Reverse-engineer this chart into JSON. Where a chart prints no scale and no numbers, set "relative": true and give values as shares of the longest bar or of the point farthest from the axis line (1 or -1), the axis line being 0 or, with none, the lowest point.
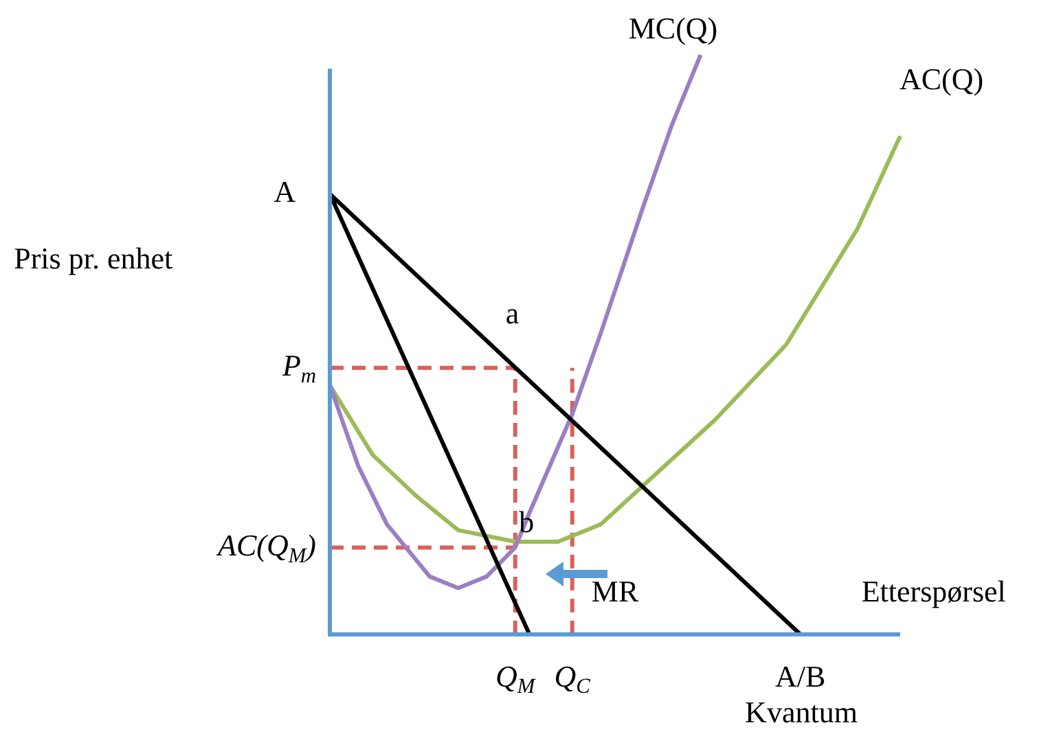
{
  "chart_data": {
    "type": "line",
    "relative": true,
    "xlabel": "Kvantum",
    "legend": false,
    "marker": "none",
    "categories": [
      null,
      null,
      null,
      null,
      null,
      null,
      null,
      null,
      null,
      null,
      null,
      null,
      null,
      "Q$_{M}$",
      null,
      null,
      null,
      "Q$_{C}$",
      null,
      null,
      null,
      null,
      null,
      null,
      null,
      null,
      null,
      null,
      null,
      null,
      null,
      null,
      null,
      "A/B",
      null,
      null,
      null,
      null,
      null,
      null,
      null
    ],
    "series": [
      {
        "name": "Etterspørsel",
        "color": "#000000",
        "values": [
          0.76,
          null,
          null,
          null,
          null,
          null,
          null,
          null,
          null,
          null,
          null,
          null,
          null,
          null,
          null,
          null,
          null,
          null,
          null,
          null,
          null,
          null,
          null,
          null,
          null,
          null,
          null,
          null,
          null,
          null,
          null,
          null,
          null,
          0,
          null,
          null,
          null,
          null,
          null,
          null,
          null
        ]
      },
      {
        "color": "#000000",
        "values": [
          0.76,
          null,
          null,
          null,
          null,
          null,
          null,
          null,
          null,
          null,
          null,
          null,
          null,
          null,
          0,
          null,
          null,
          null,
          null,
          null,
          null,
          null,
          null,
          null,
          null,
          null,
          null,
          null,
          null,
          null,
          null,
          null,
          null,
          null,
          null,
          null,
          null,
          null,
          null,
          null,
          null
        ]
      },
      {
        "name": "MC(Q)",
        "color": "#9b7fc4",
        "values": [
          0.43,
          null,
          0.29,
          null,
          0.19,
          null,
          null,
          0.1,
          null,
          0.08,
          null,
          0.1,
          null,
          0.15,
          0.21,
          null,
          null,
          0.38,
          null,
          0.52,
          null,
          null,
          0.74,
          null,
          0.88,
          null,
          1,
          null,
          null,
          null,
          null,
          null,
          null,
          null,
          null,
          null,
          null,
          null,
          null,
          null,
          null
        ]
      },
      {
        "name": "AC(Q)",
        "color": "#9bbb59",
        "values": [
          0.43,
          null,
          null,
          0.31,
          null,
          null,
          0.24,
          null,
          null,
          0.18,
          null,
          null,
          null,
          0.16,
          null,
          null,
          0.16,
          null,
          null,
          0.19,
          null,
          null,
          null,
          0.28,
          null,
          null,
          null,
          0.37,
          null,
          null,
          null,
          null,
          0.5,
          null,
          null,
          null,
          null,
          0.7,
          null,
          null,
          0.86
        ]
      }
    ],
    "ref_lines": [
      {
        "axis": "y",
        "value": 0.46,
        "label": "P$_{m}$",
        "color": "#d9625a",
        "line_style": "dashed"
      },
      {
        "axis": "y",
        "value": 0.15,
        "label": "AC(Q$_{M}$)",
        "color": "#d9625a",
        "line_style": "dashed"
      },
      {
        "axis": "x",
        "value": "Q$_{M}$",
        "color": "#d9625a",
        "line_style": "dashed"
      },
      {
        "axis": "x",
        "value": "Q$_{C}$",
        "color": "#d9625a",
        "line_style": "dashed"
      }
    ],
    "annotations": [
      "A",
      "a",
      "b",
      "MR",
      "Pris pr. enhet"
    ]
  }
}
